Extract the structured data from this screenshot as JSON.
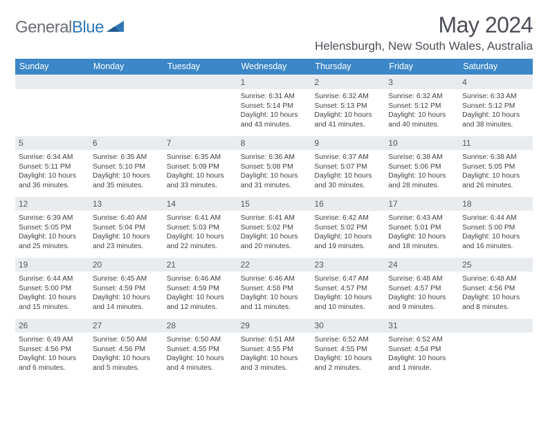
{
  "brand": {
    "part1": "General",
    "part2": "Blue"
  },
  "title": {
    "month": "May 2024",
    "location": "Helensburgh, New South Wales, Australia"
  },
  "colors": {
    "header_bg": "#3c87c7",
    "header_text": "#ffffff",
    "daynum_bg": "#e9ecef",
    "text": "#3d3f43",
    "brand_gray": "#6b6e74",
    "brand_blue": "#2f76b6",
    "title_color": "#4b4e55"
  },
  "weekdays": [
    "Sunday",
    "Monday",
    "Tuesday",
    "Wednesday",
    "Thursday",
    "Friday",
    "Saturday"
  ],
  "layout": {
    "first_weekday_index": 3,
    "days_in_month": 31
  },
  "days": {
    "1": {
      "sunrise": "6:31 AM",
      "sunset": "5:14 PM",
      "daylight": "10 hours and 43 minutes."
    },
    "2": {
      "sunrise": "6:32 AM",
      "sunset": "5:13 PM",
      "daylight": "10 hours and 41 minutes."
    },
    "3": {
      "sunrise": "6:32 AM",
      "sunset": "5:12 PM",
      "daylight": "10 hours and 40 minutes."
    },
    "4": {
      "sunrise": "6:33 AM",
      "sunset": "5:12 PM",
      "daylight": "10 hours and 38 minutes."
    },
    "5": {
      "sunrise": "6:34 AM",
      "sunset": "5:11 PM",
      "daylight": "10 hours and 36 minutes."
    },
    "6": {
      "sunrise": "6:35 AM",
      "sunset": "5:10 PM",
      "daylight": "10 hours and 35 minutes."
    },
    "7": {
      "sunrise": "6:35 AM",
      "sunset": "5:09 PM",
      "daylight": "10 hours and 33 minutes."
    },
    "8": {
      "sunrise": "6:36 AM",
      "sunset": "5:08 PM",
      "daylight": "10 hours and 31 minutes."
    },
    "9": {
      "sunrise": "6:37 AM",
      "sunset": "5:07 PM",
      "daylight": "10 hours and 30 minutes."
    },
    "10": {
      "sunrise": "6:38 AM",
      "sunset": "5:06 PM",
      "daylight": "10 hours and 28 minutes."
    },
    "11": {
      "sunrise": "6:38 AM",
      "sunset": "5:05 PM",
      "daylight": "10 hours and 26 minutes."
    },
    "12": {
      "sunrise": "6:39 AM",
      "sunset": "5:05 PM",
      "daylight": "10 hours and 25 minutes."
    },
    "13": {
      "sunrise": "6:40 AM",
      "sunset": "5:04 PM",
      "daylight": "10 hours and 23 minutes."
    },
    "14": {
      "sunrise": "6:41 AM",
      "sunset": "5:03 PM",
      "daylight": "10 hours and 22 minutes."
    },
    "15": {
      "sunrise": "6:41 AM",
      "sunset": "5:02 PM",
      "daylight": "10 hours and 20 minutes."
    },
    "16": {
      "sunrise": "6:42 AM",
      "sunset": "5:02 PM",
      "daylight": "10 hours and 19 minutes."
    },
    "17": {
      "sunrise": "6:43 AM",
      "sunset": "5:01 PM",
      "daylight": "10 hours and 18 minutes."
    },
    "18": {
      "sunrise": "6:44 AM",
      "sunset": "5:00 PM",
      "daylight": "10 hours and 16 minutes."
    },
    "19": {
      "sunrise": "6:44 AM",
      "sunset": "5:00 PM",
      "daylight": "10 hours and 15 minutes."
    },
    "20": {
      "sunrise": "6:45 AM",
      "sunset": "4:59 PM",
      "daylight": "10 hours and 14 minutes."
    },
    "21": {
      "sunrise": "6:46 AM",
      "sunset": "4:59 PM",
      "daylight": "10 hours and 12 minutes."
    },
    "22": {
      "sunrise": "6:46 AM",
      "sunset": "4:58 PM",
      "daylight": "10 hours and 11 minutes."
    },
    "23": {
      "sunrise": "6:47 AM",
      "sunset": "4:57 PM",
      "daylight": "10 hours and 10 minutes."
    },
    "24": {
      "sunrise": "6:48 AM",
      "sunset": "4:57 PM",
      "daylight": "10 hours and 9 minutes."
    },
    "25": {
      "sunrise": "6:48 AM",
      "sunset": "4:56 PM",
      "daylight": "10 hours and 8 minutes."
    },
    "26": {
      "sunrise": "6:49 AM",
      "sunset": "4:56 PM",
      "daylight": "10 hours and 6 minutes."
    },
    "27": {
      "sunrise": "6:50 AM",
      "sunset": "4:56 PM",
      "daylight": "10 hours and 5 minutes."
    },
    "28": {
      "sunrise": "6:50 AM",
      "sunset": "4:55 PM",
      "daylight": "10 hours and 4 minutes."
    },
    "29": {
      "sunrise": "6:51 AM",
      "sunset": "4:55 PM",
      "daylight": "10 hours and 3 minutes."
    },
    "30": {
      "sunrise": "6:52 AM",
      "sunset": "4:55 PM",
      "daylight": "10 hours and 2 minutes."
    },
    "31": {
      "sunrise": "6:52 AM",
      "sunset": "4:54 PM",
      "daylight": "10 hours and 1 minute."
    }
  },
  "labels": {
    "sunrise": "Sunrise:",
    "sunset": "Sunset:",
    "daylight": "Daylight:"
  }
}
